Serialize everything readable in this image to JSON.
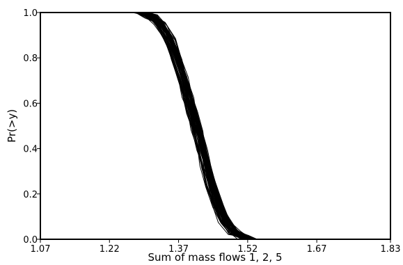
{
  "chart_data": {
    "type": "line",
    "title": "",
    "xlabel": "Sum of mass flows 1, 2, 5",
    "ylabel": "Pr(>y)",
    "xlim": [
      1.07,
      1.83
    ],
    "ylim": [
      0.0,
      1.0
    ],
    "x_ticks": [
      "1.07",
      "1.22",
      "1.37",
      "1.52",
      "1.67",
      "1.83"
    ],
    "y_ticks": [
      "0.0",
      "0.2",
      "0.4",
      "0.6",
      "0.8",
      "1.0"
    ],
    "grid": false,
    "legend": "none",
    "line_color": "#000000",
    "series_description_count": 60,
    "representative_curve": {
      "x": [
        1.286,
        1.31,
        1.33,
        1.35,
        1.365,
        1.38,
        1.39,
        1.4,
        1.41,
        1.42,
        1.43,
        1.44,
        1.455,
        1.47,
        1.49,
        1.51,
        1.53
      ],
      "y": [
        1.0,
        0.985,
        0.95,
        0.88,
        0.8,
        0.71,
        0.63,
        0.56,
        0.48,
        0.4,
        0.32,
        0.24,
        0.15,
        0.08,
        0.03,
        0.01,
        0.0
      ]
    }
  }
}
